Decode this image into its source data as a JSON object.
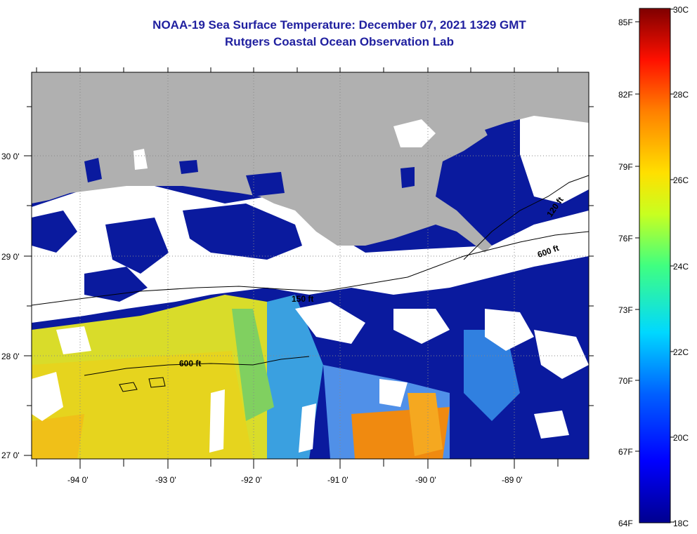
{
  "title": {
    "line1": "NOAA-19 Sea Surface Temperature:  December 07, 2021 1329 GMT",
    "line2": "Rutgers Coastal Ocean Observation Lab"
  },
  "map": {
    "lon_range": [
      -94.5,
      -88.2
    ],
    "lat_range": [
      26.95,
      30.85
    ],
    "lon_ticks": [
      "-94 0'",
      "-93 0'",
      "-92 0'",
      "-91 0'",
      "-90 0'",
      "-89 0'"
    ],
    "lat_ticks": [
      "30 0'",
      "29 0'",
      "28 0'",
      "27 0'"
    ],
    "contour_labels": [
      "120 ft",
      "600 ft",
      "150 ft",
      "600 ft"
    ],
    "colors": {
      "land": "#b0b0b0",
      "cloud": "#ffffff",
      "cold_water": "#0a1a9e",
      "warm_water": "#e8d820",
      "hot_water": "#f08a10"
    }
  },
  "colorbar": {
    "fahrenheit_labels": [
      "85F",
      "82F",
      "79F",
      "76F",
      "73F",
      "70F",
      "67F",
      "64F"
    ],
    "celsius_labels": [
      "30C",
      "28C",
      "26C",
      "24C",
      "22C",
      "20C",
      "18C"
    ],
    "min_c": 18,
    "max_c": 30,
    "min_f": 64,
    "max_f": 85
  }
}
